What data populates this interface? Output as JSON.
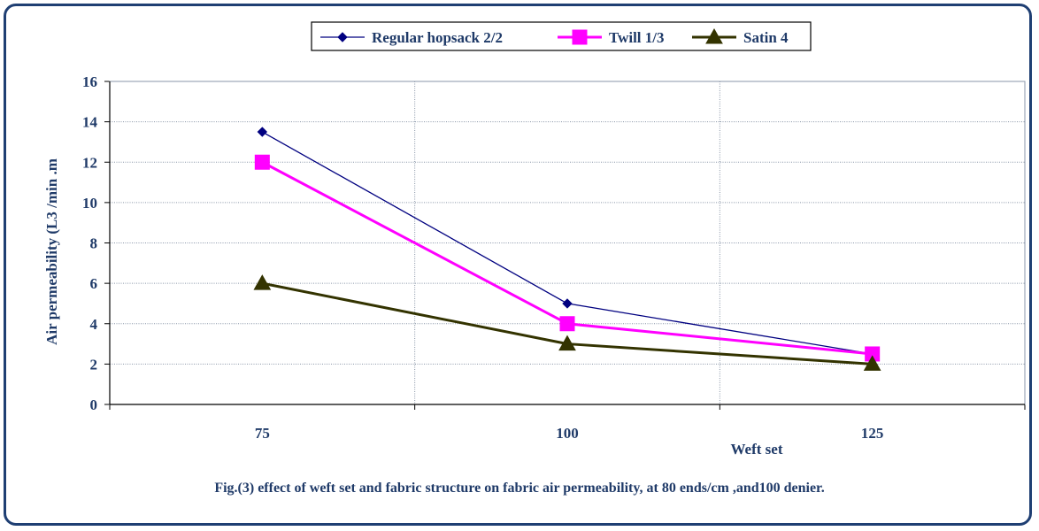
{
  "chart_data": {
    "type": "line",
    "title": "",
    "xlabel": "Weft set",
    "ylabel": "Air permeability  (L3 /min .m",
    "categories": [
      "75",
      "100",
      "125"
    ],
    "ylim": [
      0,
      16
    ],
    "yticks": [
      0,
      2,
      4,
      6,
      8,
      10,
      12,
      14,
      16
    ],
    "grid": true,
    "legend_position": "top",
    "series": [
      {
        "name": "Regular hopsack 2/2",
        "values": [
          13.5,
          5,
          2.5
        ],
        "color": "#000080",
        "marker": "diamond"
      },
      {
        "name": "Twill 1/3",
        "values": [
          12,
          4,
          2.5
        ],
        "color": "#ff00ff",
        "marker": "square"
      },
      {
        "name": "Satin 4",
        "values": [
          6,
          3,
          2
        ],
        "color": "#333300",
        "marker": "triangle"
      }
    ]
  },
  "caption": "Fig.(3) effect of weft set and  fabric structure on fabric air permeability, at 80 ends/cm ,and100 denier."
}
